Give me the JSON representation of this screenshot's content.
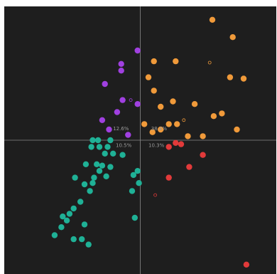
{
  "chart_data": {
    "type": "scatter",
    "title": "",
    "xlabel": "",
    "ylabel": "",
    "xlim": [
      -1.0,
      1.0
    ],
    "ylim": [
      -1.0,
      1.0
    ],
    "grid": false,
    "legend": "none",
    "background": "#1e1e1e",
    "axis_line_color": "#8a8a8a",
    "series": [
      {
        "color": "#a040e0",
        "points": [
          [
            -0.02,
            0.67
          ],
          [
            -0.14,
            0.57
          ],
          [
            -0.14,
            0.52
          ],
          [
            -0.26,
            0.42
          ],
          [
            -0.13,
            0.3
          ],
          [
            -0.02,
            0.27
          ],
          [
            -0.17,
            0.21
          ],
          [
            -0.28,
            0.15
          ],
          [
            -0.23,
            0.08
          ],
          [
            -0.09,
            0.04
          ]
        ]
      },
      {
        "color": "#f09a3a",
        "points": [
          [
            0.53,
            0.9
          ],
          [
            0.68,
            0.77
          ],
          [
            0.1,
            0.59
          ],
          [
            0.26,
            0.59
          ],
          [
            0.66,
            0.47
          ],
          [
            0.76,
            0.46
          ],
          [
            0.06,
            0.47
          ],
          [
            0.1,
            0.37
          ],
          [
            0.24,
            0.29
          ],
          [
            0.4,
            0.27
          ],
          [
            0.15,
            0.25
          ],
          [
            0.6,
            0.2
          ],
          [
            0.54,
            0.18
          ],
          [
            0.21,
            0.12
          ],
          [
            0.27,
            0.12
          ],
          [
            0.03,
            0.12
          ],
          [
            0.71,
            0.08
          ],
          [
            0.15,
            0.08
          ],
          [
            0.09,
            0.06
          ],
          [
            0.35,
            0.03
          ],
          [
            0.46,
            0.03
          ]
        ]
      },
      {
        "color": "#e23a3a",
        "points": [
          [
            0.26,
            -0.02
          ],
          [
            0.3,
            -0.03
          ],
          [
            0.21,
            -0.05
          ],
          [
            0.46,
            -0.11
          ],
          [
            0.36,
            -0.2
          ],
          [
            0.21,
            -0.28
          ],
          [
            0.78,
            -0.93
          ]
        ]
      },
      {
        "color": "#1fb196",
        "points": [
          [
            -0.35,
            0.0
          ],
          [
            -0.31,
            0.0
          ],
          [
            -0.22,
            0.0
          ],
          [
            -0.36,
            -0.05
          ],
          [
            -0.3,
            -0.05
          ],
          [
            -0.24,
            -0.05
          ],
          [
            -0.26,
            -0.1
          ],
          [
            -0.2,
            -0.1
          ],
          [
            -0.13,
            -0.11
          ],
          [
            -0.4,
            -0.18
          ],
          [
            -0.32,
            -0.18
          ],
          [
            -0.28,
            -0.19
          ],
          [
            -0.22,
            -0.2
          ],
          [
            -0.3,
            -0.23
          ],
          [
            -0.02,
            -0.23
          ],
          [
            -0.34,
            -0.28
          ],
          [
            -0.25,
            -0.27
          ],
          [
            -0.05,
            -0.26
          ],
          [
            -0.48,
            -0.28
          ],
          [
            -0.35,
            -0.32
          ],
          [
            -0.41,
            -0.33
          ],
          [
            -0.37,
            -0.38
          ],
          [
            -0.01,
            -0.32
          ],
          [
            -0.06,
            -0.38
          ],
          [
            -0.44,
            -0.46
          ],
          [
            -0.49,
            -0.51
          ],
          [
            -0.52,
            -0.55
          ],
          [
            -0.57,
            -0.57
          ],
          [
            -0.54,
            -0.6
          ],
          [
            -0.58,
            -0.65
          ],
          [
            -0.41,
            -0.63
          ],
          [
            -0.63,
            -0.71
          ],
          [
            -0.43,
            -0.74
          ],
          [
            -0.49,
            -0.74
          ],
          [
            -0.38,
            -0.78
          ],
          [
            -0.04,
            -0.58
          ]
        ]
      },
      {
        "color": "#e23a3a",
        "hollow": true,
        "points": [
          [
            0.11,
            -0.41
          ]
        ]
      },
      {
        "color": "#f09a3a",
        "hollow": true,
        "points": [
          [
            0.51,
            0.58
          ],
          [
            0.32,
            0.15
          ]
        ]
      },
      {
        "color": "#a040e0",
        "hollow": true,
        "points": [
          [
            -0.07,
            0.3
          ]
        ]
      }
    ],
    "annotations": [
      {
        "text": "12.6%",
        "x": -0.2,
        "y": 0.075
      },
      {
        "text": "38.4%",
        "x": 0.08,
        "y": 0.075
      },
      {
        "text": "10.5%",
        "x": -0.18,
        "y": -0.05
      },
      {
        "text": "10.3%",
        "x": 0.06,
        "y": -0.05
      }
    ]
  }
}
